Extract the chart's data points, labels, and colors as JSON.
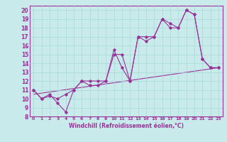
{
  "xlabel": "Windchill (Refroidissement éolien,°C)",
  "background_color": "#c8eaea",
  "grid_color": "#a8d8d8",
  "line_color": "#993399",
  "xlim": [
    -0.5,
    23.5
  ],
  "ylim": [
    8,
    20.5
  ],
  "xticks": [
    0,
    1,
    2,
    3,
    4,
    5,
    6,
    7,
    8,
    9,
    10,
    11,
    12,
    13,
    14,
    15,
    16,
    17,
    18,
    19,
    20,
    21,
    22,
    23
  ],
  "yticks": [
    8,
    9,
    10,
    11,
    12,
    13,
    14,
    15,
    16,
    17,
    18,
    19,
    20
  ],
  "series1_x": [
    0,
    1,
    2,
    3,
    4,
    5,
    6,
    7,
    8,
    9,
    10,
    11,
    12,
    13,
    14,
    15,
    16,
    17,
    18,
    19,
    20,
    21,
    22,
    23
  ],
  "series1_y": [
    11,
    10,
    10.5,
    9.5,
    8.5,
    11,
    12,
    11.5,
    11.5,
    12,
    15.5,
    13.5,
    12,
    17,
    17,
    17,
    19,
    18.5,
    18,
    20,
    19.5,
    14.5,
    13.5,
    13.5
  ],
  "series2_x": [
    0,
    1,
    2,
    3,
    4,
    5,
    6,
    7,
    8,
    9,
    10,
    11,
    12,
    13,
    14,
    15,
    16,
    17,
    18,
    19,
    20,
    21,
    22,
    23
  ],
  "series2_y": [
    11,
    10,
    10.3,
    10,
    10.5,
    11,
    12,
    12,
    12,
    12,
    15,
    15,
    12,
    17,
    16.5,
    17,
    19,
    18,
    18,
    20,
    19.5,
    14.5,
    13.5,
    13.5
  ],
  "series3_x": [
    0,
    23
  ],
  "series3_y": [
    10.5,
    13.5
  ]
}
